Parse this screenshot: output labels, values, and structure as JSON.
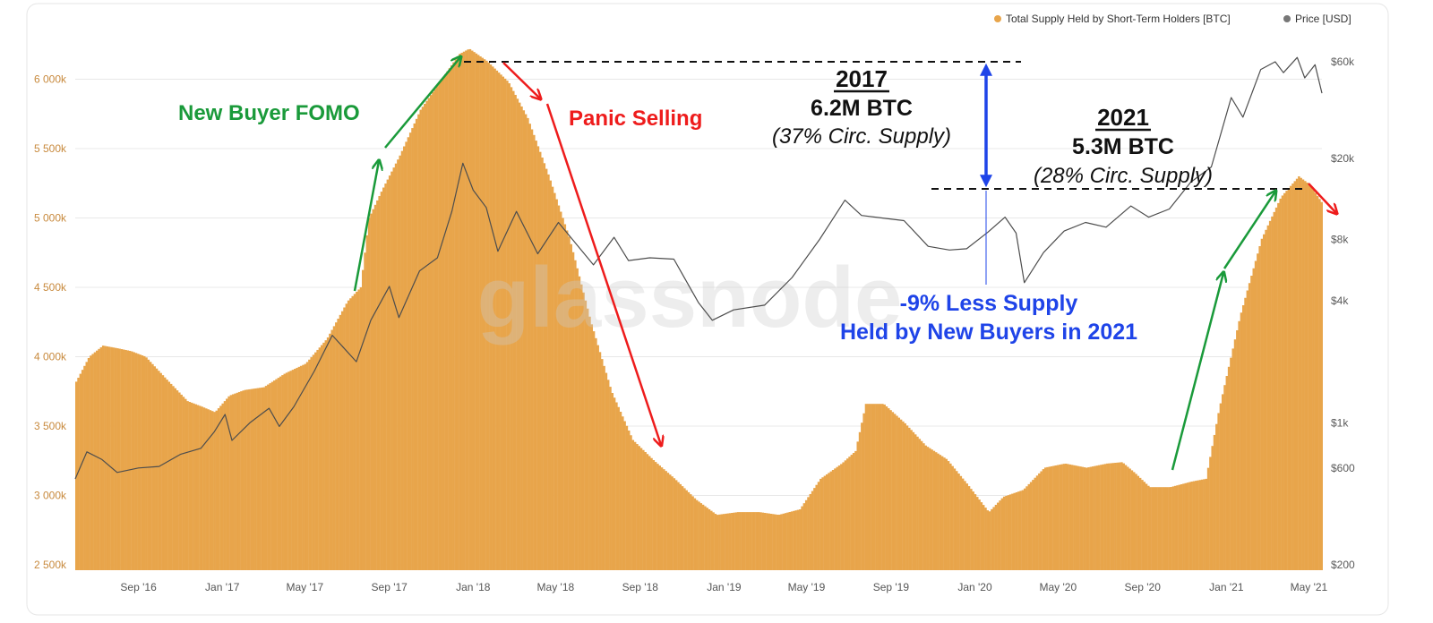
{
  "colors": {
    "supply": "#E8A54B",
    "price": "#4d4d4d",
    "left_axis_text": "#C88A3E",
    "right_axis_text": "#5a5a5a",
    "grid": "#e8e8e8",
    "green_arrow": "#1a9a3a",
    "red_arrow": "#ee1c1c",
    "blue_arrow": "#1f44e8",
    "legend_supply_dot": "#E8A54B",
    "legend_price_dot": "#777777"
  },
  "legend": {
    "supply_label": "Total Supply Held by Short-Term Holders [BTC]",
    "price_label": "Price [USD]"
  },
  "watermark": "glassnode",
  "annotations": {
    "fomo": "New Buyer FOMO",
    "panic": "Panic Selling",
    "y2017_title": "2017",
    "y2017_amount": "6.2M BTC",
    "y2017_pct": "(37% Circ. Supply)",
    "y2021_title": "2021",
    "y2021_amount": "5.3M BTC",
    "y2021_pct": "(28% Circ. Supply)",
    "diff_line1": "-9% Less Supply",
    "diff_line2": "Held by New Buyers in 2021"
  },
  "chart_data": {
    "type": "area",
    "title": "",
    "xlabel": "",
    "ylabel": "",
    "x_tick_labels": [
      "Sep '16",
      "Jan '17",
      "May '17",
      "Sep '17",
      "Jan '18",
      "May '18",
      "Sep '18",
      "Jan '19",
      "May '19",
      "Sep '19",
      "Jan '20",
      "May '20",
      "Sep '20",
      "Jan '21",
      "May '21"
    ],
    "y_left_ticks": [
      "2 500k",
      "3 000k",
      "3 500k",
      "4 000k",
      "4 500k",
      "5 000k",
      "5 500k",
      "6 000k"
    ],
    "y_left_range": [
      2500000,
      6300000
    ],
    "y_right_ticks": [
      "$200",
      "$600",
      "$1k",
      "$4k",
      "$8k",
      "$20k",
      "$60k"
    ],
    "y_right_tick_values": [
      200,
      600,
      1000,
      4000,
      8000,
      20000,
      60000
    ],
    "y_right_scale": "log",
    "x_range": [
      "2016-06-01",
      "2021-05-20"
    ],
    "legend_position": "top-right",
    "grid": true,
    "series": [
      {
        "name": "Total Supply Held by Short-Term Holders [BTC]",
        "axis": "left",
        "style": "area",
        "points": [
          [
            "2016-06-01",
            3820000
          ],
          [
            "2016-06-20",
            4000000
          ],
          [
            "2016-07-10",
            4080000
          ],
          [
            "2016-08-01",
            4060000
          ],
          [
            "2016-08-20",
            4040000
          ],
          [
            "2016-09-10",
            4000000
          ],
          [
            "2016-10-10",
            3840000
          ],
          [
            "2016-11-10",
            3680000
          ],
          [
            "2016-12-01",
            3640000
          ],
          [
            "2016-12-20",
            3600000
          ],
          [
            "2017-01-10",
            3720000
          ],
          [
            "2017-02-01",
            3760000
          ],
          [
            "2017-03-01",
            3780000
          ],
          [
            "2017-04-01",
            3880000
          ],
          [
            "2017-05-01",
            3950000
          ],
          [
            "2017-06-01",
            4130000
          ],
          [
            "2017-07-01",
            4400000
          ],
          [
            "2017-07-20",
            4500000
          ],
          [
            "2017-08-01",
            5000000
          ],
          [
            "2017-08-20",
            5200000
          ],
          [
            "2017-09-15",
            5450000
          ],
          [
            "2017-10-15",
            5780000
          ],
          [
            "2017-11-15",
            6000000
          ],
          [
            "2017-12-10",
            6180000
          ],
          [
            "2017-12-25",
            6220000
          ],
          [
            "2018-01-20",
            6130000
          ],
          [
            "2018-02-20",
            5980000
          ],
          [
            "2018-03-20",
            5720000
          ],
          [
            "2018-04-20",
            5300000
          ],
          [
            "2018-05-20",
            4850000
          ],
          [
            "2018-06-20",
            4250000
          ],
          [
            "2018-07-20",
            3750000
          ],
          [
            "2018-08-20",
            3400000
          ],
          [
            "2018-09-20",
            3250000
          ],
          [
            "2018-10-20",
            3120000
          ],
          [
            "2018-11-20",
            2970000
          ],
          [
            "2018-12-20",
            2860000
          ],
          [
            "2019-01-20",
            2880000
          ],
          [
            "2019-02-20",
            2880000
          ],
          [
            "2019-03-20",
            2860000
          ],
          [
            "2019-04-20",
            2900000
          ],
          [
            "2019-05-20",
            3120000
          ],
          [
            "2019-06-20",
            3230000
          ],
          [
            "2019-07-10",
            3320000
          ],
          [
            "2019-07-25",
            3660000
          ],
          [
            "2019-08-20",
            3660000
          ],
          [
            "2019-09-20",
            3520000
          ],
          [
            "2019-10-20",
            3360000
          ],
          [
            "2019-11-20",
            3260000
          ],
          [
            "2019-12-20",
            3080000
          ],
          [
            "2020-01-20",
            2880000
          ],
          [
            "2020-02-10",
            2990000
          ],
          [
            "2020-03-10",
            3040000
          ],
          [
            "2020-04-10",
            3200000
          ],
          [
            "2020-05-10",
            3230000
          ],
          [
            "2020-06-10",
            3200000
          ],
          [
            "2020-07-10",
            3230000
          ],
          [
            "2020-08-01",
            3240000
          ],
          [
            "2020-08-20",
            3160000
          ],
          [
            "2020-09-10",
            3060000
          ],
          [
            "2020-10-10",
            3060000
          ],
          [
            "2020-11-10",
            3100000
          ],
          [
            "2020-12-01",
            3120000
          ],
          [
            "2020-12-20",
            3620000
          ],
          [
            "2021-01-20",
            4300000
          ],
          [
            "2021-02-20",
            4850000
          ],
          [
            "2021-03-20",
            5150000
          ],
          [
            "2021-04-15",
            5300000
          ],
          [
            "2021-05-01",
            5240000
          ],
          [
            "2021-05-20",
            5100000
          ]
        ]
      },
      {
        "name": "Price [USD]",
        "axis": "right",
        "style": "line",
        "points": [
          [
            "2016-06-01",
            530
          ],
          [
            "2016-06-18",
            720
          ],
          [
            "2016-07-10",
            660
          ],
          [
            "2016-08-01",
            570
          ],
          [
            "2016-09-01",
            600
          ],
          [
            "2016-10-01",
            610
          ],
          [
            "2016-11-01",
            700
          ],
          [
            "2016-12-01",
            750
          ],
          [
            "2016-12-20",
            900
          ],
          [
            "2017-01-05",
            1100
          ],
          [
            "2017-01-15",
            820
          ],
          [
            "2017-02-10",
            1000
          ],
          [
            "2017-03-10",
            1180
          ],
          [
            "2017-03-25",
            960
          ],
          [
            "2017-04-15",
            1200
          ],
          [
            "2017-05-15",
            1800
          ],
          [
            "2017-06-10",
            2700
          ],
          [
            "2017-07-15",
            2000
          ],
          [
            "2017-08-05",
            3200
          ],
          [
            "2017-09-01",
            4700
          ],
          [
            "2017-09-15",
            3300
          ],
          [
            "2017-10-15",
            5600
          ],
          [
            "2017-11-10",
            6500
          ],
          [
            "2017-12-01",
            11000
          ],
          [
            "2017-12-17",
            19000
          ],
          [
            "2018-01-01",
            14000
          ],
          [
            "2018-01-20",
            11500
          ],
          [
            "2018-02-06",
            7000
          ],
          [
            "2018-03-05",
            11000
          ],
          [
            "2018-04-05",
            6800
          ],
          [
            "2018-05-05",
            9700
          ],
          [
            "2018-06-25",
            6000
          ],
          [
            "2018-07-25",
            8200
          ],
          [
            "2018-08-15",
            6300
          ],
          [
            "2018-09-15",
            6500
          ],
          [
            "2018-10-20",
            6400
          ],
          [
            "2018-11-25",
            3900
          ],
          [
            "2018-12-15",
            3200
          ],
          [
            "2019-01-15",
            3600
          ],
          [
            "2019-03-01",
            3800
          ],
          [
            "2019-04-10",
            5200
          ],
          [
            "2019-05-20",
            8000
          ],
          [
            "2019-06-26",
            12500
          ],
          [
            "2019-07-20",
            10500
          ],
          [
            "2019-08-20",
            10200
          ],
          [
            "2019-09-20",
            9900
          ],
          [
            "2019-10-25",
            7400
          ],
          [
            "2019-11-25",
            7100
          ],
          [
            "2019-12-20",
            7200
          ],
          [
            "2020-01-20",
            8700
          ],
          [
            "2020-02-14",
            10300
          ],
          [
            "2020-03-01",
            8600
          ],
          [
            "2020-03-13",
            4900
          ],
          [
            "2020-04-10",
            6900
          ],
          [
            "2020-05-10",
            8800
          ],
          [
            "2020-06-10",
            9700
          ],
          [
            "2020-07-10",
            9200
          ],
          [
            "2020-08-15",
            11700
          ],
          [
            "2020-09-10",
            10300
          ],
          [
            "2020-10-10",
            11300
          ],
          [
            "2020-11-10",
            15300
          ],
          [
            "2020-12-10",
            18200
          ],
          [
            "2021-01-08",
            40000
          ],
          [
            "2021-01-25",
            32000
          ],
          [
            "2021-02-20",
            55000
          ],
          [
            "2021-03-13",
            60000
          ],
          [
            "2021-03-25",
            53000
          ],
          [
            "2021-04-14",
            63000
          ],
          [
            "2021-04-25",
            50000
          ],
          [
            "2021-05-10",
            58000
          ],
          [
            "2021-05-20",
            42000
          ]
        ]
      }
    ]
  }
}
